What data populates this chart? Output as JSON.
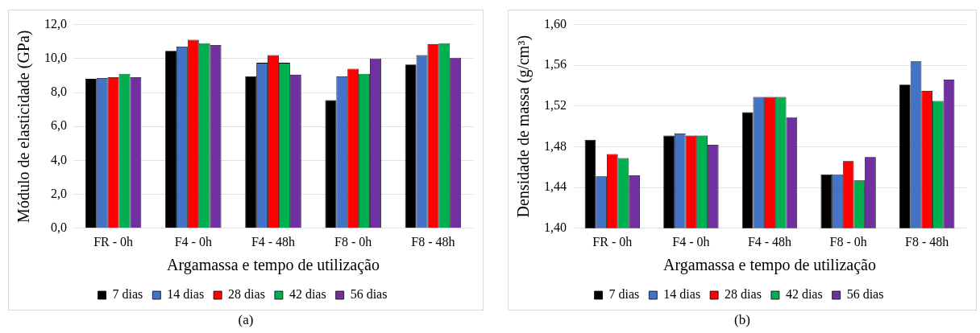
{
  "chart_data": [
    {
      "type": "bar",
      "ylabel": "Módulo de elasticidade (GPa)",
      "xlabel": "Argamassa e tempo de utilização",
      "categories": [
        "FR - 0h",
        "F4 - 0h",
        "F4 - 48h",
        "F8 - 0h",
        "F8 - 48h"
      ],
      "series": [
        {
          "name": "7 dias",
          "color": "#000000",
          "values": [
            8.8,
            10.45,
            8.95,
            7.55,
            9.65
          ]
        },
        {
          "name": "14 dias",
          "color": "#4472c4",
          "values": [
            8.85,
            10.7,
            9.75,
            8.95,
            10.2
          ]
        },
        {
          "name": "28 dias",
          "color": "#ff0000",
          "values": [
            8.9,
            11.1,
            10.2,
            9.4,
            10.85
          ]
        },
        {
          "name": "42 dias",
          "color": "#00b050",
          "values": [
            9.1,
            10.9,
            9.75,
            9.1,
            10.9
          ]
        },
        {
          "name": "56 dias",
          "color": "#7030a0",
          "values": [
            8.9,
            10.8,
            9.05,
            10.0,
            10.05
          ]
        }
      ],
      "ylim": [
        0,
        12
      ],
      "yticks": [
        {
          "value": 0,
          "label": "0,0"
        },
        {
          "value": 2,
          "label": "2,0"
        },
        {
          "value": 4,
          "label": "4,0"
        },
        {
          "value": 6,
          "label": "6,0"
        },
        {
          "value": 8,
          "label": "8,0"
        },
        {
          "value": 10,
          "label": "10,0"
        },
        {
          "value": 12,
          "label": "12,0"
        }
      ],
      "grid": "y",
      "legend": "bottom",
      "annotations": [
        "(a)"
      ]
    },
    {
      "type": "bar",
      "ylabel": "Densidade de massa (g/cm³)",
      "xlabel": "Argamassa e tempo de utilização",
      "categories": [
        "FR - 0h",
        "F4 - 0h",
        "F4 - 48h",
        "F8 - 0h",
        "F8 - 48h"
      ],
      "series": [
        {
          "name": "7 dias",
          "color": "#000000",
          "values": [
            1.487,
            1.491,
            1.514,
            1.453,
            1.541
          ]
        },
        {
          "name": "14 dias",
          "color": "#4472c4",
          "values": [
            1.451,
            1.493,
            1.529,
            1.453,
            1.564
          ]
        },
        {
          "name": "28 dias",
          "color": "#ff0000",
          "values": [
            1.473,
            1.491,
            1.529,
            1.466,
            1.535
          ]
        },
        {
          "name": "42 dias",
          "color": "#00b050",
          "values": [
            1.469,
            1.491,
            1.529,
            1.447,
            1.525
          ]
        },
        {
          "name": "56 dias",
          "color": "#7030a0",
          "values": [
            1.452,
            1.482,
            1.509,
            1.47,
            1.546
          ]
        }
      ],
      "ylim": [
        1.4,
        1.6
      ],
      "yticks": [
        {
          "value": 1.4,
          "label": "1,40"
        },
        {
          "value": 1.44,
          "label": "1,44"
        },
        {
          "value": 1.48,
          "label": "1,48"
        },
        {
          "value": 1.52,
          "label": "1,52"
        },
        {
          "value": 1.56,
          "label": "1,56"
        },
        {
          "value": 1.6,
          "label": "1,60"
        }
      ],
      "grid": "y",
      "legend": "bottom",
      "annotations": [
        "(b)"
      ]
    }
  ]
}
